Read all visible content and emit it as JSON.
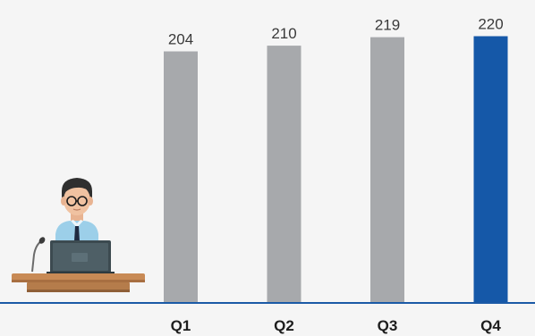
{
  "chart_data": {
    "type": "bar",
    "title": "",
    "xlabel": "",
    "ylabel": "",
    "categories": [
      "Q1",
      "Q2",
      "Q3",
      "Q4"
    ],
    "values": [
      204,
      210,
      219,
      220
    ],
    "value_labels": [
      "204",
      "210",
      "219",
      "220"
    ],
    "highlight_index": 3,
    "grid": false,
    "legend": "none"
  },
  "colors": {
    "bar": "#a7a9ac",
    "highlight": "#1558a8",
    "baseline": "#1b5aa6",
    "background": "#f5f5f5"
  },
  "illustration": {
    "icon": "speaker-at-podium-with-laptop-icon"
  }
}
